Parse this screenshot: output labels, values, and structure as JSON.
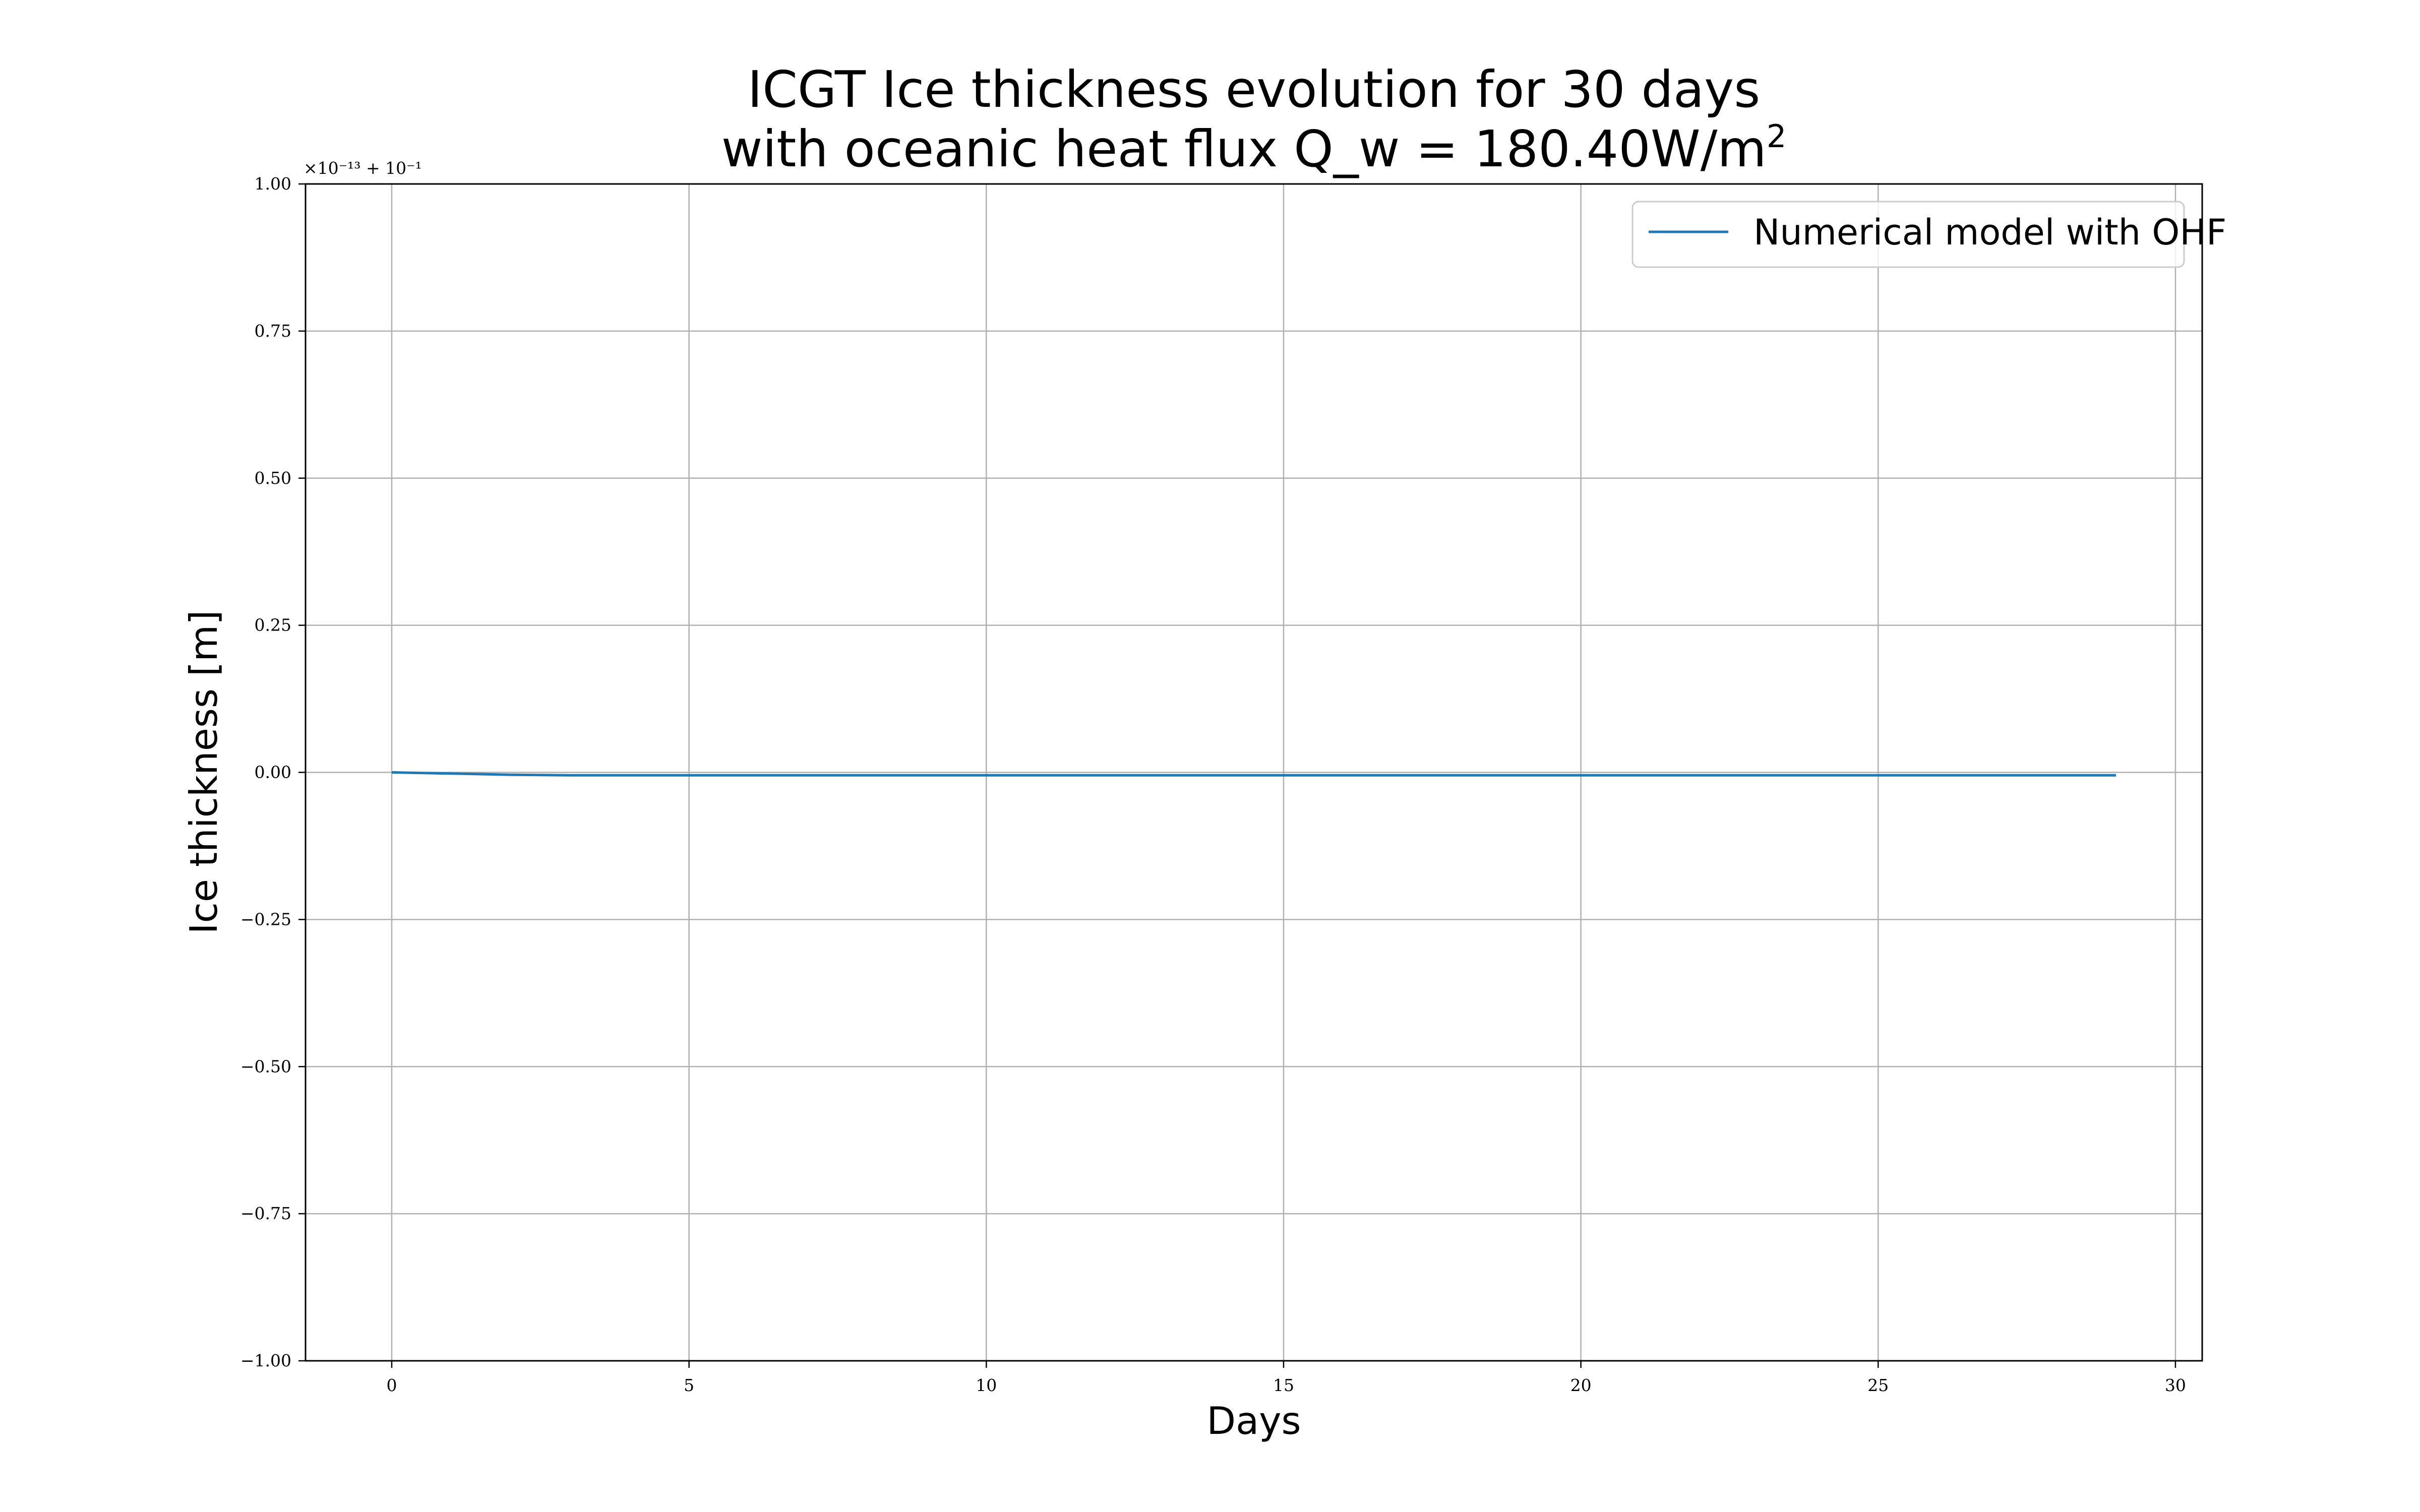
{
  "chart_data": {
    "type": "line",
    "title": "ICGT Ice thickness evolution for 30 days",
    "subtitle_prefix": "with oceanic heat flux Q_w = 180.40W/m",
    "subtitle_sup": "2",
    "xlabel": "Days",
    "ylabel": "Ice thickness [m]",
    "xlim": [
      -1.45,
      30.45
    ],
    "ylim": [
      -1.0,
      1.0
    ],
    "xticks": [
      0,
      5,
      10,
      15,
      20,
      25,
      30
    ],
    "xtick_labels": [
      "0",
      "5",
      "10",
      "15",
      "20",
      "25",
      "30"
    ],
    "yticks": [
      1.0,
      0.75,
      0.5,
      0.25,
      0.0,
      -0.25,
      -0.5,
      -0.75,
      -1.0
    ],
    "ytick_labels": [
      "1.00",
      "0.75",
      "0.50",
      "0.25",
      "0.00",
      "−0.25",
      "−0.50",
      "−0.75",
      "−1.00"
    ],
    "y_offset_text": "×10⁻¹³ + 10⁻¹",
    "grid": true,
    "legend_position": "top-right",
    "series": [
      {
        "name": "Numerical model with OHF",
        "color": "#1f77b4",
        "x": [
          0,
          1,
          2,
          3,
          4,
          5,
          6,
          7,
          8,
          9,
          10,
          11,
          12,
          13,
          14,
          15,
          16,
          17,
          18,
          19,
          20,
          21,
          22,
          23,
          24,
          25,
          26,
          27,
          28,
          29
        ],
        "y": [
          0.0,
          -0.002,
          -0.004,
          -0.005,
          -0.005,
          -0.005,
          -0.005,
          -0.005,
          -0.005,
          -0.005,
          -0.005,
          -0.005,
          -0.005,
          -0.005,
          -0.005,
          -0.005,
          -0.005,
          -0.005,
          -0.005,
          -0.005,
          -0.005,
          -0.005,
          -0.005,
          -0.005,
          -0.005,
          -0.005,
          -0.005,
          -0.005,
          -0.005,
          -0.005
        ]
      }
    ]
  }
}
